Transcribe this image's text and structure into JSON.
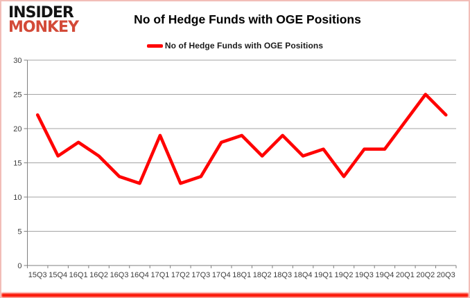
{
  "brand": {
    "line1": "INSIDER",
    "line2": "MONKEY",
    "color_primary": "#131313",
    "color_accent": "#d34a38"
  },
  "header": {
    "title": "No of Hedge Funds with OGE Positions"
  },
  "legend": {
    "label": "No of Hedge Funds with OGE Positions",
    "swatch_color": "#ff0000"
  },
  "chart_data": {
    "type": "line",
    "title": "No of Hedge Funds with OGE Positions",
    "categories": [
      "15Q3",
      "15Q4",
      "16Q1",
      "16Q2",
      "16Q3",
      "16Q4",
      "17Q1",
      "17Q2",
      "17Q3",
      "17Q4",
      "18Q1",
      "18Q2",
      "18Q3",
      "18Q4",
      "19Q1",
      "19Q2",
      "19Q3",
      "19Q4",
      "20Q1",
      "20Q2",
      "20Q3"
    ],
    "values": [
      22,
      16,
      18,
      16,
      13,
      12,
      19,
      12,
      13,
      18,
      19,
      16,
      19,
      16,
      17,
      13,
      17,
      17,
      21,
      25,
      22
    ],
    "xlabel": "",
    "ylabel": "",
    "ylim": [
      0,
      30
    ],
    "yticks": [
      0,
      5,
      10,
      15,
      20,
      25,
      30
    ],
    "grid": true,
    "legend_position": "top-center",
    "line_color": "#ff0000",
    "grid_color": "#a3a3a3",
    "axis_color": "#7f7f7f",
    "tick_label_color": "#3d3d3d"
  },
  "frame": {
    "border_color": "#f2bdb8",
    "bottom_bar_color": "#fb1404"
  }
}
